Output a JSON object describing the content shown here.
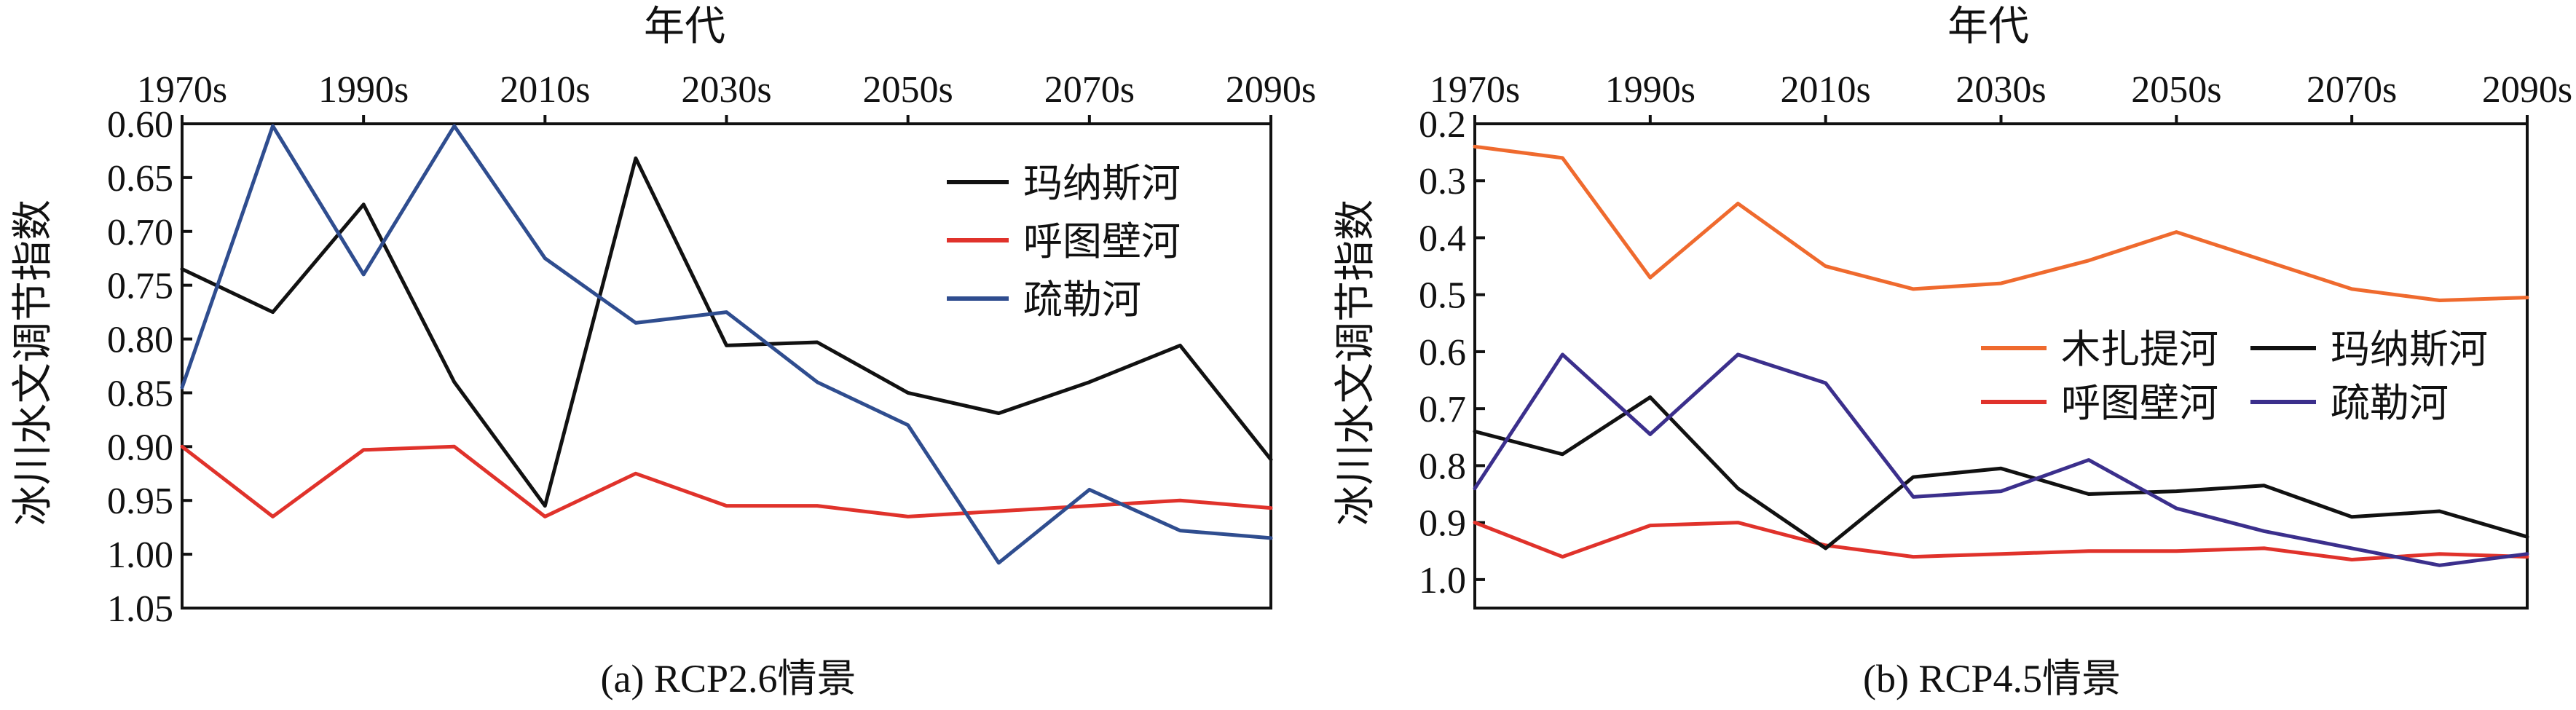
{
  "chart_data": [
    {
      "type": "line",
      "caption": "(a) RCP2.6情景",
      "xlabel": "年代",
      "ylabel": "冰川水文调节指数",
      "x": [
        "1970s",
        "1980s",
        "1990s",
        "2000s",
        "2010s",
        "2020s",
        "2030s",
        "2040s",
        "2050s",
        "2060s",
        "2070s",
        "2080s",
        "2090s"
      ],
      "x_tick_labels": [
        "1970s",
        "1990s",
        "2010s",
        "2030s",
        "2050s",
        "2070s",
        "2090s"
      ],
      "x_ticks_at": [
        "1970s",
        "1990s",
        "2010s",
        "2030s",
        "2050s",
        "2070s",
        "2090s"
      ],
      "x_axis_position": "top",
      "y_inverted": true,
      "ylim": [
        0.6,
        1.05
      ],
      "y_ticks": [
        "0.60",
        "0.65",
        "0.70",
        "0.75",
        "0.80",
        "0.85",
        "0.90",
        "0.95",
        "1.00",
        "1.05"
      ],
      "legend_position": "top-right",
      "grid": false,
      "series": [
        {
          "name": "玛纳斯河",
          "color": "#111111",
          "values": [
            0.735,
            0.775,
            0.675,
            0.84,
            0.955,
            0.632,
            0.806,
            0.803,
            0.85,
            0.869,
            0.84,
            0.806,
            0.912
          ]
        },
        {
          "name": "呼图壁河",
          "color": "#e0322b",
          "values": [
            0.9,
            0.965,
            0.903,
            0.9,
            0.965,
            0.925,
            0.955,
            0.955,
            0.965,
            0.96,
            0.955,
            0.95,
            0.957
          ]
        },
        {
          "name": "疏勒河",
          "color": "#2f4d8f",
          "values": [
            0.845,
            0.602,
            0.74,
            0.602,
            0.725,
            0.785,
            0.775,
            0.84,
            0.88,
            1.008,
            0.94,
            0.978,
            0.985
          ]
        }
      ]
    },
    {
      "type": "line",
      "caption": "(b) RCP4.5情景",
      "xlabel": "年代",
      "ylabel": "冰川水文调节指数",
      "x": [
        "1970s",
        "1980s",
        "1990s",
        "2000s",
        "2010s",
        "2020s",
        "2030s",
        "2040s",
        "2050s",
        "2060s",
        "2070s",
        "2080s",
        "2090s"
      ],
      "x_tick_labels": [
        "1970s",
        "1990s",
        "2010s",
        "2030s",
        "2050s",
        "2070s",
        "2090s"
      ],
      "x_ticks_at": [
        "1970s",
        "1990s",
        "2010s",
        "2030s",
        "2050s",
        "2070s",
        "2090s"
      ],
      "x_axis_position": "top",
      "y_inverted": true,
      "ylim": [
        0.2,
        1.05
      ],
      "y_ticks": [
        "0.2",
        "0.3",
        "0.4",
        "0.5",
        "0.6",
        "0.7",
        "0.8",
        "0.9",
        "1.0"
      ],
      "legend_position": "center-right",
      "grid": false,
      "series": [
        {
          "name": "木扎提河",
          "color": "#ef6a2e",
          "values": [
            0.24,
            0.26,
            0.47,
            0.34,
            0.45,
            0.49,
            0.48,
            0.44,
            0.39,
            0.44,
            0.49,
            0.51,
            0.505
          ]
        },
        {
          "name": "呼图壁河",
          "color": "#e0322b",
          "values": [
            0.9,
            0.96,
            0.905,
            0.9,
            0.94,
            0.96,
            0.955,
            0.95,
            0.95,
            0.945,
            0.965,
            0.955,
            0.96
          ]
        },
        {
          "name": "玛纳斯河",
          "color": "#111111",
          "values": [
            0.74,
            0.78,
            0.68,
            0.84,
            0.945,
            0.82,
            0.805,
            0.85,
            0.845,
            0.835,
            0.89,
            0.88,
            0.925
          ]
        },
        {
          "name": "疏勒河",
          "color": "#3b2f8c",
          "values": [
            0.84,
            0.605,
            0.745,
            0.605,
            0.655,
            0.855,
            0.845,
            0.79,
            0.875,
            0.915,
            0.945,
            0.975,
            0.955
          ]
        }
      ]
    }
  ]
}
